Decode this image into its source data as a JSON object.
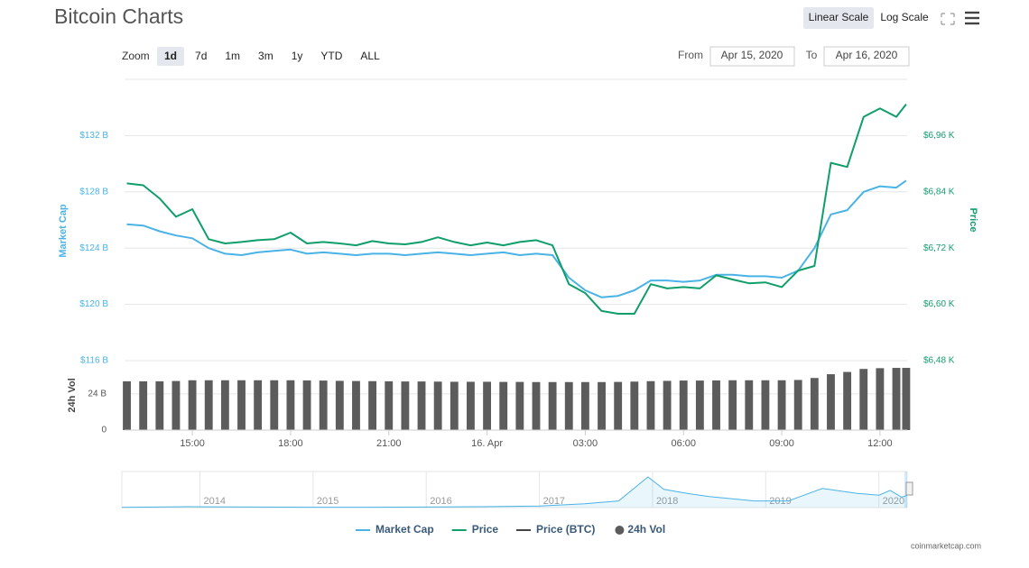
{
  "header": {
    "title": "Bitcoin Charts",
    "scale_buttons": [
      "Linear Scale",
      "Log Scale"
    ]
  },
  "toolbar": {
    "zoom_label": "Zoom",
    "zoom_buttons": [
      "1d",
      "7d",
      "1m",
      "3m",
      "1y",
      "YTD",
      "ALL"
    ],
    "from_label": "From",
    "from_date": "Apr 15, 2020",
    "to_label": "To",
    "to_date": "Apr 16, 2020"
  },
  "chart_data": [
    {
      "type": "line",
      "y_label": "Market Cap",
      "y2_label": "Price",
      "grid": true,
      "x": [
        13.0,
        13.5,
        14.0,
        14.5,
        15.0,
        15.5,
        16.0,
        16.5,
        17.0,
        17.5,
        18.0,
        18.5,
        19.0,
        19.5,
        20.0,
        20.5,
        21.0,
        21.5,
        22.0,
        22.5,
        23.0,
        23.5,
        24.0,
        24.5,
        25.0,
        25.5,
        26.0,
        26.5,
        27.0,
        27.5,
        28.0,
        28.5,
        29.0,
        29.5,
        30.0,
        30.5,
        31.0,
        31.5,
        32.0,
        32.5,
        33.0,
        33.5,
        34.0,
        34.5,
        35.0,
        35.5,
        36.0,
        36.5,
        36.8
      ],
      "xlim": [
        12.93,
        36.83
      ],
      "xticks": [
        {
          "value": 15,
          "label": "15:00"
        },
        {
          "value": 18,
          "label": "18:00"
        },
        {
          "value": 21,
          "label": "21:00"
        },
        {
          "value": 24,
          "label": "16. Apr"
        },
        {
          "value": 27,
          "label": "03:00"
        },
        {
          "value": 30,
          "label": "06:00"
        },
        {
          "value": 33,
          "label": "09:00"
        },
        {
          "value": 36,
          "label": "12:00"
        }
      ],
      "ylim": [
        116,
        136
      ],
      "yticks": [
        {
          "value": 116,
          "label": "$116 B"
        },
        {
          "value": 120,
          "label": "$120 B"
        },
        {
          "value": 124,
          "label": "$124 B"
        },
        {
          "value": 128,
          "label": "$128 B"
        },
        {
          "value": 132,
          "label": "$132 B"
        }
      ],
      "y2lim": [
        6480,
        7080
      ],
      "y2ticks": [
        {
          "value": 6480,
          "label": "$6,48 K"
        },
        {
          "value": 6600,
          "label": "$6,60 K"
        },
        {
          "value": 6720,
          "label": "$6,72 K"
        },
        {
          "value": 6840,
          "label": "$6,84 K"
        },
        {
          "value": 6960,
          "label": "$6,96 K"
        }
      ],
      "series": [
        {
          "name": "Market Cap",
          "color": "#4ab3e6",
          "values": [
            125.7,
            125.6,
            125.2,
            124.9,
            124.7,
            124.0,
            123.6,
            123.5,
            123.7,
            123.8,
            123.9,
            123.6,
            123.7,
            123.6,
            123.5,
            123.6,
            123.6,
            123.5,
            123.6,
            123.7,
            123.6,
            123.5,
            123.6,
            123.7,
            123.5,
            123.6,
            123.5,
            121.9,
            121.0,
            120.5,
            120.6,
            121.0,
            121.7,
            121.7,
            121.6,
            121.7,
            122.1,
            122.1,
            122.0,
            122.0,
            121.9,
            122.4,
            124.0,
            126.4,
            126.7,
            128.0,
            128.4,
            128.3,
            128.8
          ]
        },
        {
          "name": "Price",
          "color": "#109e6a",
          "axis": "y2",
          "values": [
            6858,
            6854,
            6826,
            6787,
            6803,
            6739,
            6730,
            6733,
            6737,
            6739,
            6753,
            6730,
            6733,
            6730,
            6726,
            6735,
            6730,
            6728,
            6733,
            6743,
            6733,
            6726,
            6732,
            6726,
            6733,
            6737,
            6726,
            6643,
            6624,
            6586,
            6580,
            6580,
            6643,
            6634,
            6637,
            6634,
            6662,
            6653,
            6645,
            6647,
            6637,
            6672,
            6682,
            6902,
            6893,
            7000,
            7018,
            7000,
            7027
          ]
        },
        {
          "name": "Price (BTC)",
          "color": "#434348",
          "visible": false
        }
      ]
    },
    {
      "type": "bar",
      "y_label": "24h Vol",
      "x": [
        13.0,
        13.5,
        14.0,
        14.5,
        15.0,
        15.5,
        16.0,
        16.5,
        17.0,
        17.5,
        18.0,
        18.5,
        19.0,
        19.5,
        20.0,
        20.5,
        21.0,
        21.5,
        22.0,
        22.5,
        23.0,
        23.5,
        24.0,
        24.5,
        25.0,
        25.5,
        26.0,
        26.5,
        27.0,
        27.5,
        28.0,
        28.5,
        29.0,
        29.5,
        30.0,
        30.5,
        31.0,
        31.5,
        32.0,
        32.5,
        33.0,
        33.5,
        34.0,
        34.5,
        35.0,
        35.5,
        36.0,
        36.5,
        36.8
      ],
      "xlim": [
        12.93,
        36.83
      ],
      "ylim": [
        0,
        46
      ],
      "yticks": [
        0,
        {
          "value": 24,
          "label": "24 B"
        }
      ],
      "series": [
        {
          "name": "24h Vol",
          "color": "#5c5c5c",
          "values": [
            32.3,
            32.3,
            32.3,
            32.5,
            33.0,
            33.0,
            33.0,
            33.0,
            33.0,
            33.0,
            33.0,
            32.9,
            32.8,
            32.6,
            32.5,
            32.4,
            32.3,
            32.2,
            32.2,
            32.1,
            32.0,
            32.0,
            32.0,
            31.9,
            31.9,
            31.8,
            31.8,
            31.8,
            31.8,
            31.8,
            31.9,
            32.1,
            32.4,
            32.6,
            32.8,
            32.8,
            32.9,
            33.0,
            33.0,
            33.0,
            33.0,
            33.2,
            34.5,
            37.0,
            38.5,
            40.5,
            41.0,
            41.2,
            41.2
          ]
        }
      ]
    },
    {
      "type": "area",
      "color": "#4ab3e6",
      "x": [
        2013.31,
        2013.9,
        2014.0,
        2014.5,
        2015.0,
        2015.5,
        2016.0,
        2016.5,
        2017.0,
        2017.4,
        2017.7,
        2017.96,
        2018.1,
        2018.3,
        2018.5,
        2018.9,
        2019.2,
        2019.5,
        2019.8,
        2020.0,
        2020.1,
        2020.2,
        2020.25
      ],
      "values": [
        1.5,
        9,
        8,
        6,
        4,
        3.5,
        6,
        9,
        16,
        40,
        70,
        320,
        190,
        150,
        115,
        70,
        70,
        200,
        150,
        130,
        180,
        110,
        125
      ],
      "xlim": [
        2013.31,
        2020.25
      ],
      "xticks": [
        2014,
        2015,
        2016,
        2017,
        2018,
        2019,
        2020
      ]
    }
  ],
  "footer": {
    "credit": "coinmarketcap.com"
  }
}
